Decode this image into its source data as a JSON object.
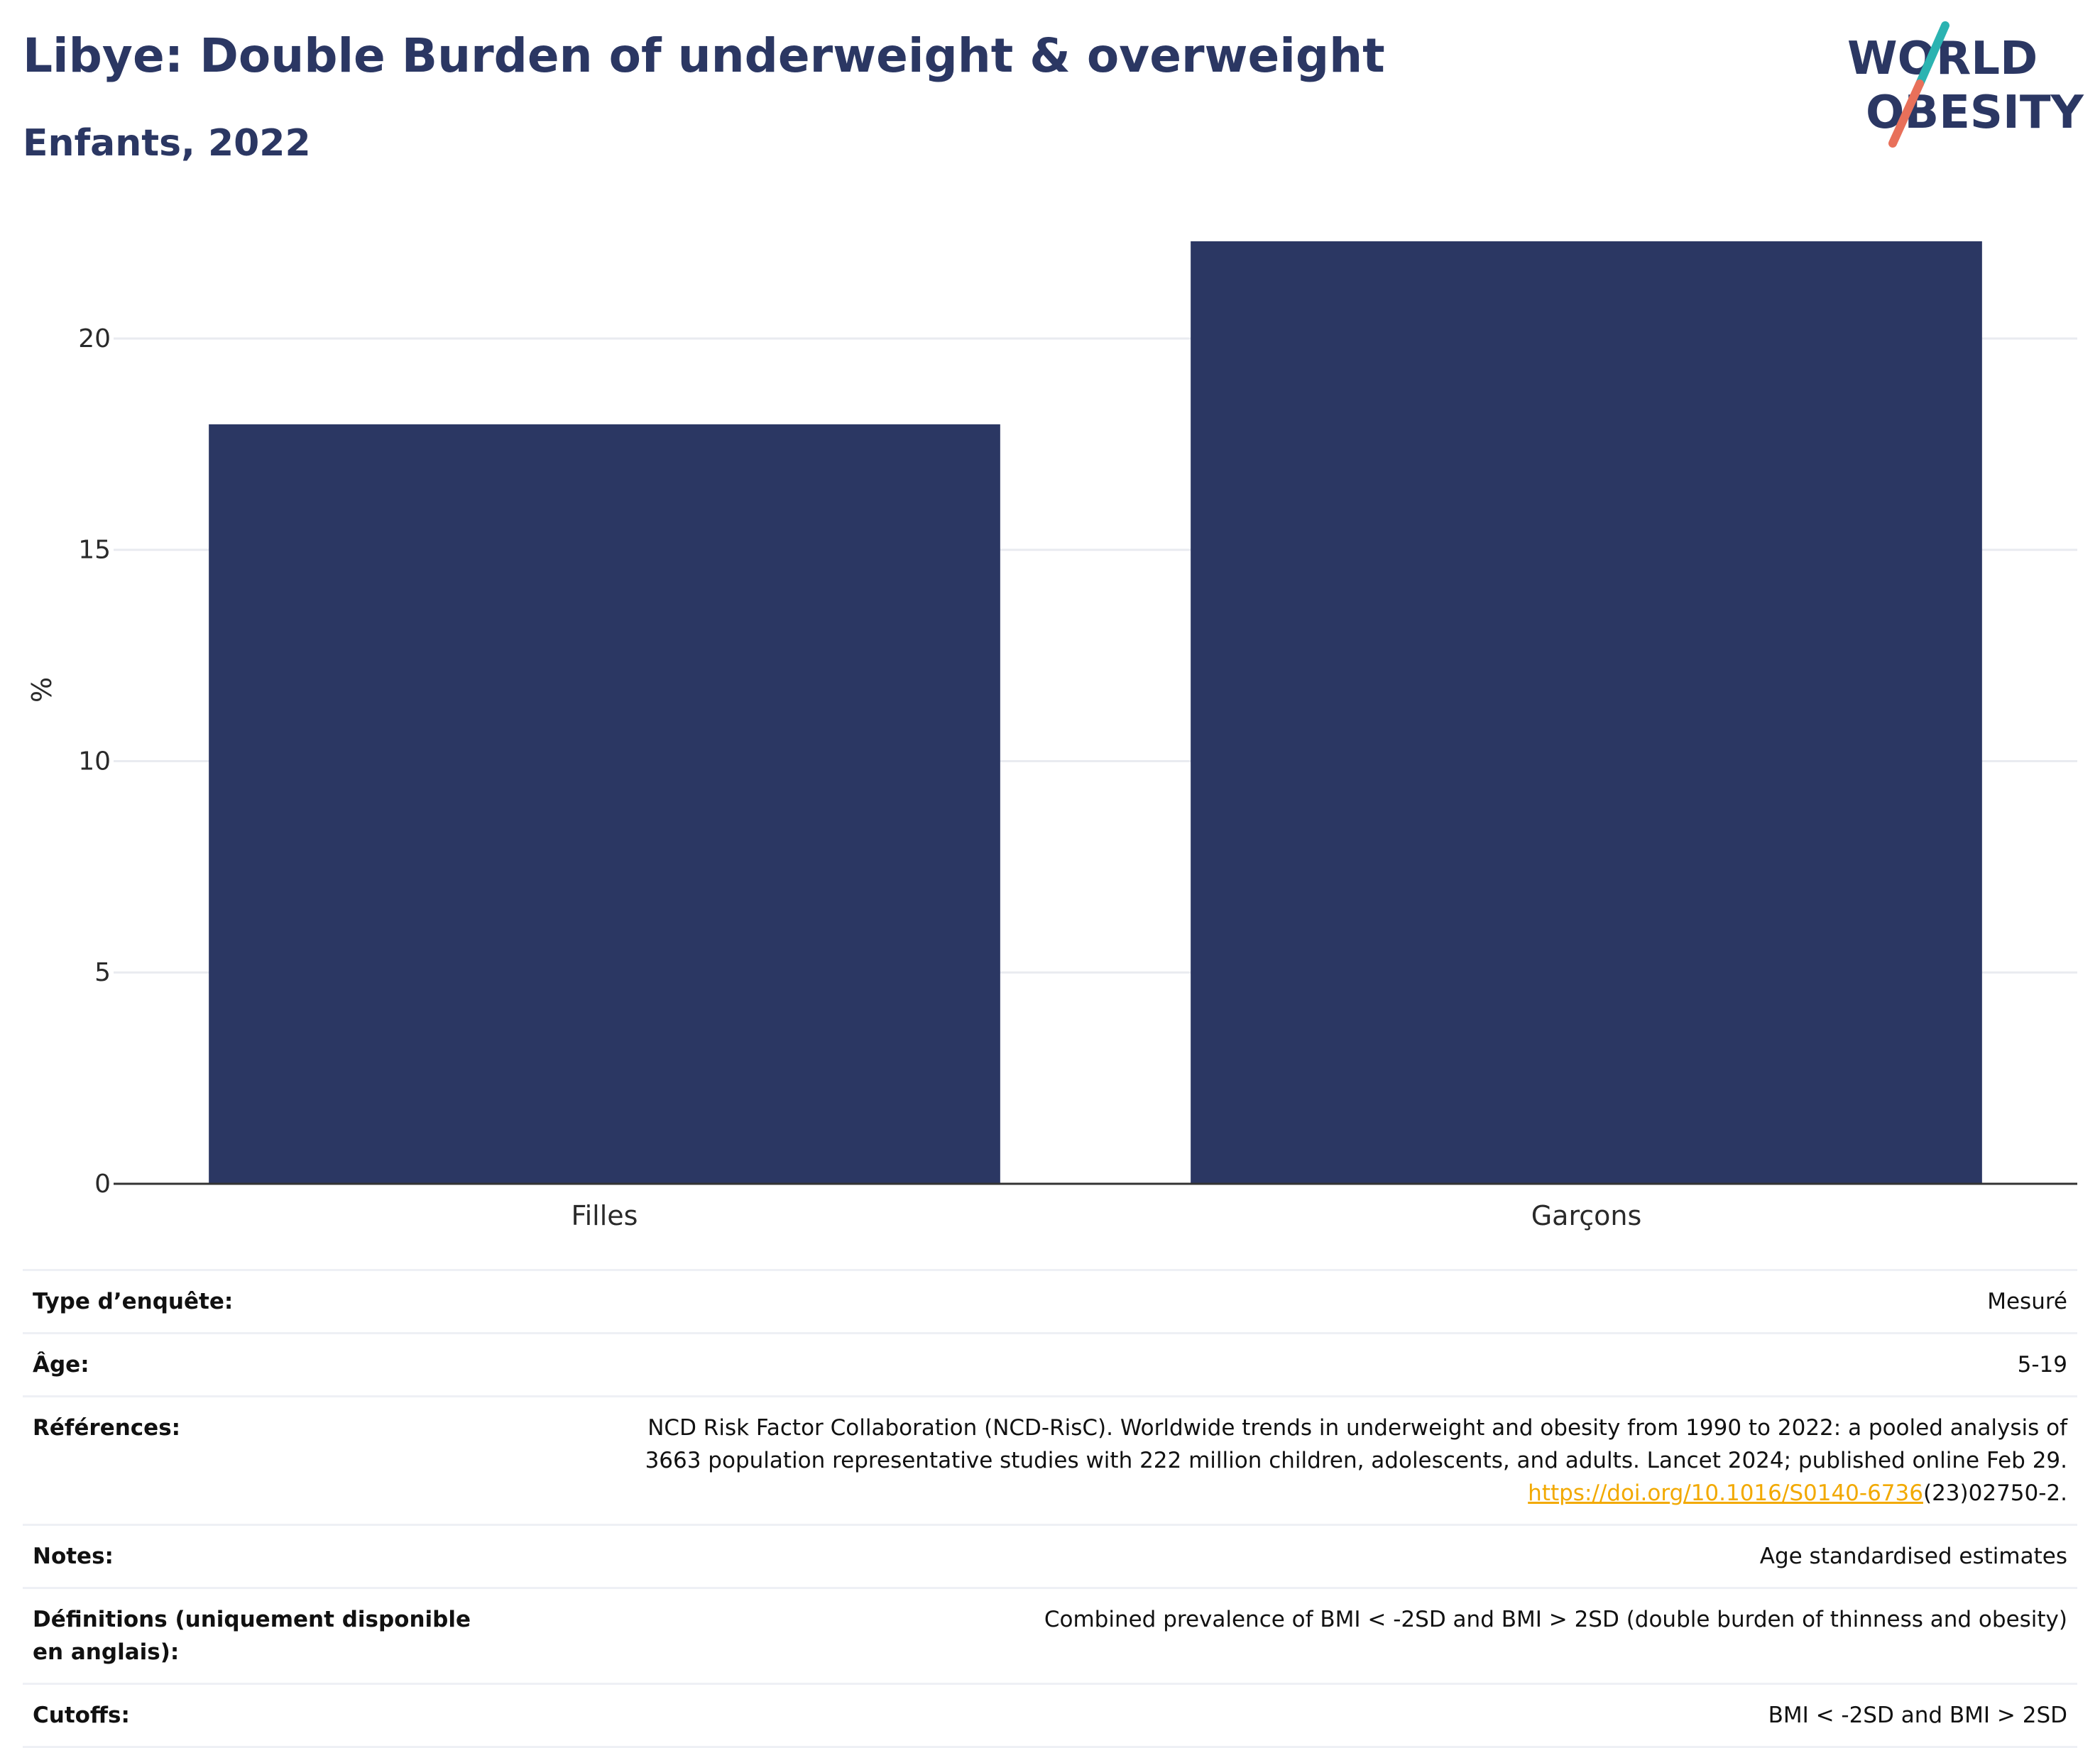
{
  "header": {
    "title": "Libye: Double Burden of underweight & overweight",
    "subtitle": "Enfants, 2022"
  },
  "logo": {
    "line1": "WORLD",
    "line2": "OBESITY",
    "colors": {
      "navy": "#2b3763",
      "teal": "#2bb3b1",
      "coral": "#e8705a"
    }
  },
  "chart_data": {
    "type": "bar",
    "categories": [
      "Filles",
      "Garçons"
    ],
    "values": [
      17.97,
      22.3
    ],
    "ylabel": "%",
    "ylim": [
      0,
      22.3
    ],
    "yticks": [
      0,
      5,
      10,
      15,
      20
    ],
    "bar_color": "#2b3763",
    "grid": true
  },
  "info": {
    "survey_type": {
      "label": "Type d’enquête:",
      "value": "Mesuré"
    },
    "age": {
      "label": "Âge:",
      "value": "5-19"
    },
    "references": {
      "label": "Références:",
      "line1": "NCD Risk Factor Collaboration (NCD-RisC). Worldwide trends in underweight and obesity from 1990 to 2022: a pooled analysis of",
      "line2": "3663 population representative studies with 222 million children, adolescents, and adults. Lancet 2024; published online Feb 29.",
      "link": "https://doi.org/10.1016/S0140-6736",
      "link_suffix": "(23)02750-2."
    },
    "notes": {
      "label": "Notes:",
      "value": "Age standardised estimates"
    },
    "definitions": {
      "label": "Définitions (uniquement disponible en anglais):",
      "value": "Combined prevalence of BMI < -2SD and BMI > 2SD (double burden of thinness and obesity)"
    },
    "cutoffs": {
      "label": "Cutoffs:",
      "value": "BMI < -2SD and BMI > 2SD"
    }
  }
}
